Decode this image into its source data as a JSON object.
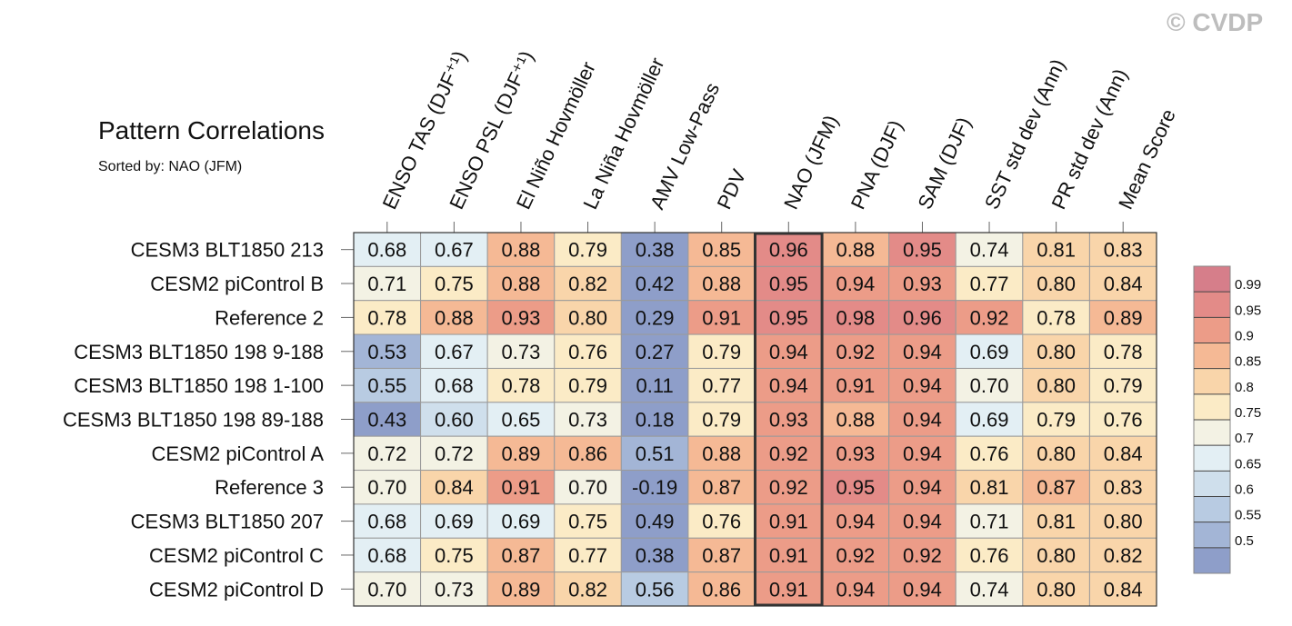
{
  "watermark": "© CVDP",
  "chart_data": {
    "type": "heatmap",
    "title": "Pattern Correlations",
    "subtitle": "Sorted by: NAO (JFM)",
    "highlight_column": "NAO (JFM)",
    "columns": [
      "ENSO TAS (DJF⁺¹)",
      "ENSO PSL (DJF⁺¹)",
      "El Niño Hovmöller",
      "La Niña Hovmöller",
      "AMV Low-Pass",
      "PDV",
      "NAO (JFM)",
      "PNA (DJF)",
      "SAM (DJF)",
      "SST std dev (Ann)",
      "PR std dev (Ann)",
      "Mean Score"
    ],
    "rows": [
      "CESM3 BLT1850 213",
      "CESM2 piControl B",
      "Reference 2",
      "CESM3 BLT1850 198 9-188",
      "CESM3 BLT1850 198 1-100",
      "CESM3 BLT1850 198 89-188",
      "CESM2 piControl A",
      "Reference 3",
      "CESM3 BLT1850 207",
      "CESM2 piControl C",
      "CESM2 piControl D"
    ],
    "values": [
      [
        "0.68",
        "0.67",
        "0.88",
        "0.79",
        "0.38",
        "0.85",
        "0.96",
        "0.88",
        "0.95",
        "0.74",
        "0.81",
        "0.83"
      ],
      [
        "0.71",
        "0.75",
        "0.88",
        "0.82",
        "0.42",
        "0.88",
        "0.95",
        "0.94",
        "0.93",
        "0.77",
        "0.80",
        "0.84"
      ],
      [
        "0.78",
        "0.88",
        "0.93",
        "0.80",
        "0.29",
        "0.91",
        "0.95",
        "0.98",
        "0.96",
        "0.92",
        "0.78",
        "0.89"
      ],
      [
        "0.53",
        "0.67",
        "0.73",
        "0.76",
        "0.27",
        "0.79",
        "0.94",
        "0.92",
        "0.94",
        "0.69",
        "0.80",
        "0.78"
      ],
      [
        "0.55",
        "0.68",
        "0.78",
        "0.79",
        "0.11",
        "0.77",
        "0.94",
        "0.91",
        "0.94",
        "0.70",
        "0.80",
        "0.79"
      ],
      [
        "0.43",
        "0.60",
        "0.65",
        "0.73",
        "0.18",
        "0.79",
        "0.93",
        "0.88",
        "0.94",
        "0.69",
        "0.79",
        "0.76"
      ],
      [
        "0.72",
        "0.72",
        "0.89",
        "0.86",
        "0.51",
        "0.88",
        "0.92",
        "0.93",
        "0.94",
        "0.76",
        "0.80",
        "0.84"
      ],
      [
        "0.70",
        "0.84",
        "0.91",
        "0.70",
        "-0.19",
        "0.87",
        "0.92",
        "0.95",
        "0.94",
        "0.81",
        "0.87",
        "0.83"
      ],
      [
        "0.68",
        "0.69",
        "0.69",
        "0.75",
        "0.49",
        "0.76",
        "0.91",
        "0.94",
        "0.94",
        "0.71",
        "0.81",
        "0.80"
      ],
      [
        "0.68",
        "0.75",
        "0.87",
        "0.77",
        "0.38",
        "0.87",
        "0.91",
        "0.92",
        "0.92",
        "0.76",
        "0.80",
        "0.82"
      ],
      [
        "0.70",
        "0.73",
        "0.89",
        "0.82",
        "0.56",
        "0.86",
        "0.91",
        "0.94",
        "0.94",
        "0.74",
        "0.80",
        "0.84"
      ]
    ],
    "colorbar": {
      "labels": [
        "0.99",
        "0.95",
        "0.9",
        "0.85",
        "0.8",
        "0.75",
        "0.7",
        "0.65",
        "0.6",
        "0.55",
        "0.5"
      ],
      "thresholds": [
        0.5,
        0.55,
        0.6,
        0.65,
        0.7,
        0.75,
        0.8,
        0.85,
        0.9,
        0.95,
        0.99
      ],
      "colors": [
        "#8e9ec9",
        "#a3b5d6",
        "#b8cbe2",
        "#cfdfec",
        "#e3eff4",
        "#f3f2e4",
        "#fbebc6",
        "#f9d5aa",
        "#f5b995",
        "#ec9c88",
        "#e38b88",
        "#d67e8a"
      ]
    }
  }
}
